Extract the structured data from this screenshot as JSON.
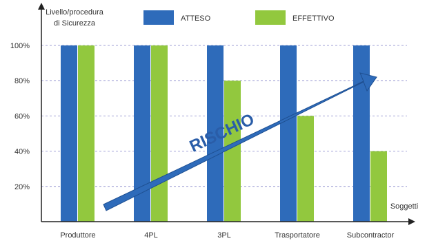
{
  "chart_data": {
    "type": "bar",
    "categories": [
      "Produttore",
      "4PL",
      "3PL",
      "Trasportatore",
      "Subcontractor"
    ],
    "series": [
      {
        "name": "ATTESO",
        "values": [
          100,
          100,
          100,
          100,
          100
        ],
        "color": "#2e6bba"
      },
      {
        "name": "EFFETTIVO",
        "values": [
          100,
          100,
          80,
          60,
          40
        ],
        "color": "#92c83e"
      }
    ],
    "ylim": [
      0,
      100
    ],
    "yticks": [
      {
        "value": 20,
        "label": "20%"
      },
      {
        "value": 40,
        "label": "40%"
      },
      {
        "value": 60,
        "label": "60%"
      },
      {
        "value": 80,
        "label": "80%"
      },
      {
        "value": 100,
        "label": "100%"
      }
    ],
    "ylabel_line1": "Livello/procedura",
    "ylabel_line2": "di Sicurezza",
    "xlabel": "Soggetti",
    "grid": true,
    "legend": "top",
    "annotation": {
      "text": "RISCHIO",
      "color": "#2e6bba"
    }
  }
}
